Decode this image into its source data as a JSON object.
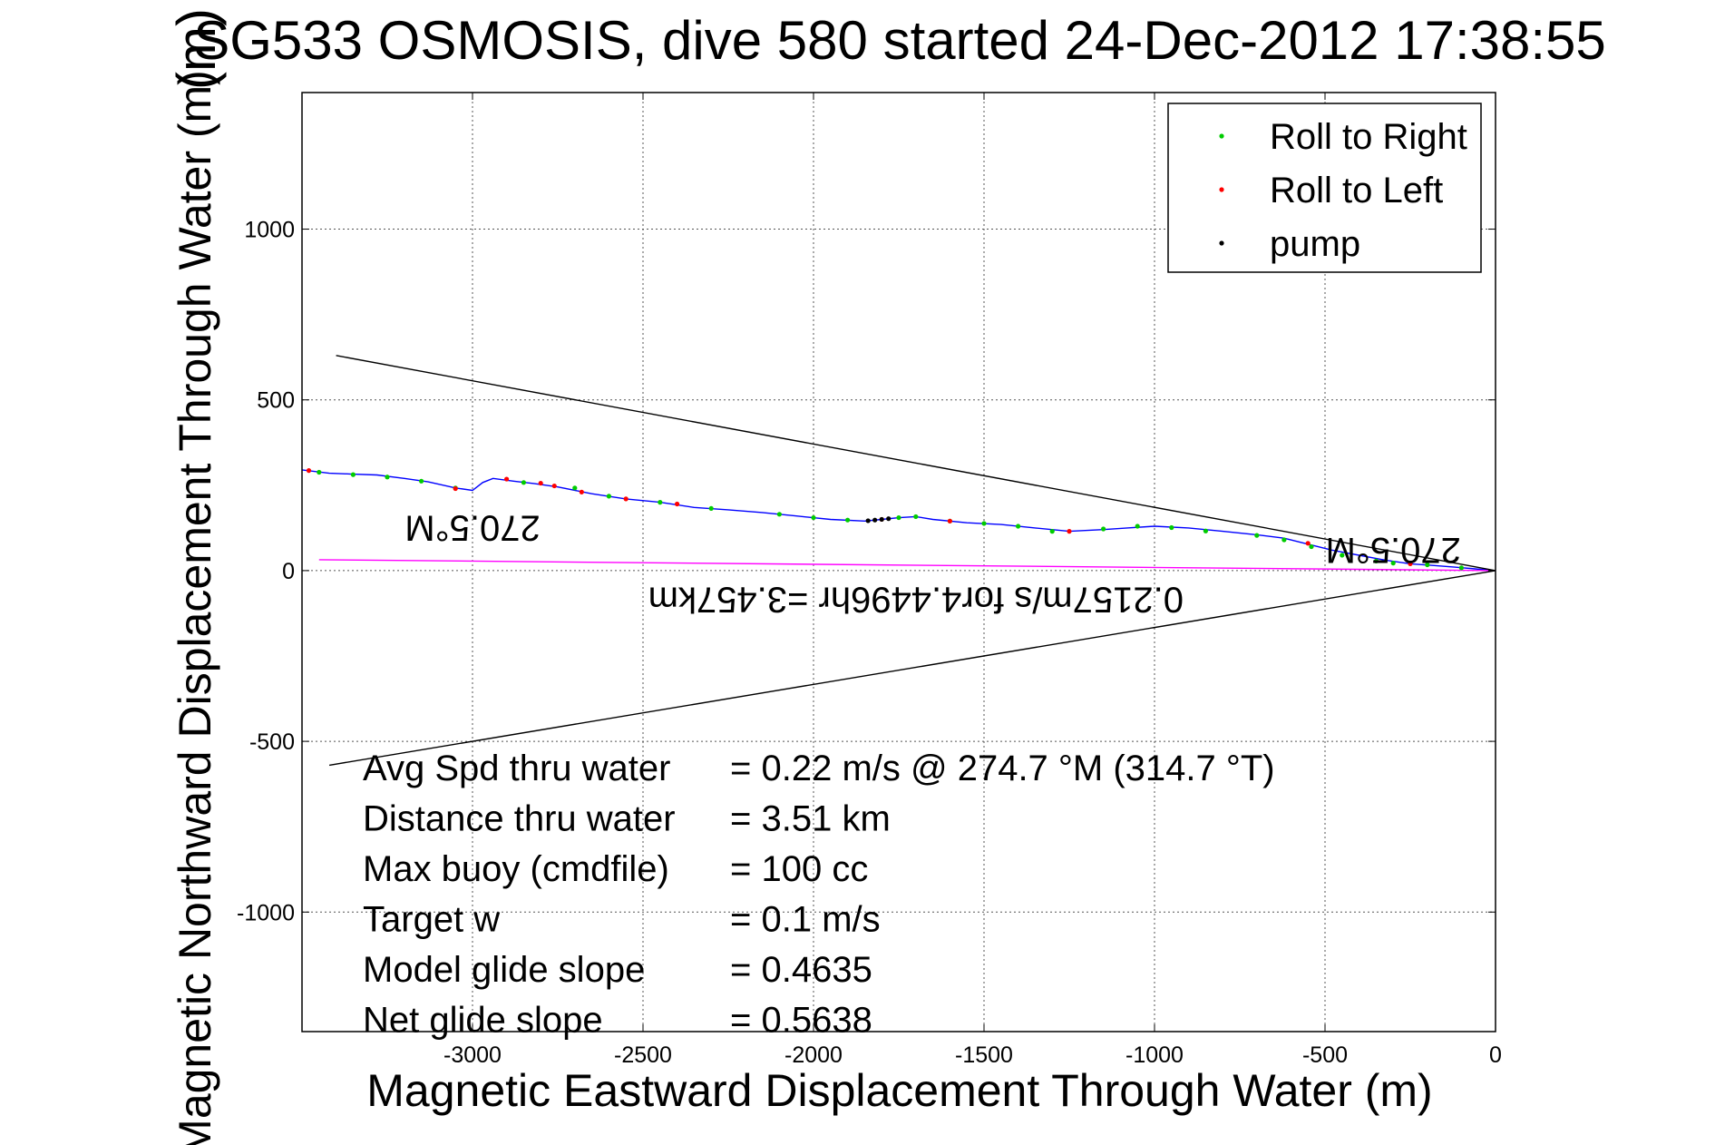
{
  "chart_data": {
    "type": "line",
    "title": "SG533 OSMOSIS, dive 580 started 24-Dec-2012 17:38:55",
    "title_overlay_fragment": "(m)",
    "xlabel": "Magnetic Eastward Displacement Through Water (m)",
    "ylabel": "Magnetic Northward Displacement Through Water (m)",
    "xlim": [
      -3500,
      0
    ],
    "ylim": [
      -1350,
      1400
    ],
    "xticks": [
      -3000,
      -2500,
      -2000,
      -1500,
      -1000,
      -500,
      0
    ],
    "yticks": [
      -1000,
      -500,
      0,
      500,
      1000
    ],
    "grid": true,
    "legend": {
      "placement": "top-right",
      "entries": [
        {
          "label": "Roll to Right",
          "color": "#00cc00"
        },
        {
          "label": "Roll to Left",
          "color": "#ff0000"
        },
        {
          "label": "pump",
          "color": "#000000"
        }
      ]
    },
    "series": [
      {
        "style": "track",
        "color": "#0000ff",
        "x": [
          0,
          -60,
          -120,
          -180,
          -250,
          -320,
          -400,
          -480,
          -560,
          -620,
          -700,
          -800,
          -900,
          -1000,
          -1080,
          -1150,
          -1250,
          -1350,
          -1450,
          -1550,
          -1650,
          -1700,
          -1750,
          -1800,
          -1850,
          -1950,
          -2050,
          -2150,
          -2250,
          -2350,
          -2450,
          -2550,
          -2650,
          -2750,
          -2820,
          -2880,
          -2940,
          -2970,
          -3000,
          -3050,
          -3130,
          -3200,
          -3280,
          -3360,
          -3420,
          -3500
        ],
        "y": [
          0,
          5,
          10,
          15,
          20,
          30,
          45,
          60,
          80,
          95,
          105,
          115,
          125,
          130,
          125,
          120,
          115,
          125,
          135,
          140,
          150,
          158,
          155,
          150,
          145,
          150,
          160,
          170,
          178,
          185,
          200,
          210,
          225,
          245,
          255,
          262,
          270,
          258,
          235,
          242,
          260,
          270,
          280,
          283,
          285,
          295
        ]
      },
      {
        "style": "depth-averaged-current",
        "color": "#ff00ff",
        "x": [
          0,
          -3450
        ],
        "y": [
          0,
          32
        ]
      },
      {
        "style": "heading-fan-upper",
        "color": "#000000",
        "x": [
          0,
          -3400
        ],
        "y": [
          0,
          630
        ]
      },
      {
        "style": "heading-fan-lower",
        "color": "#000000",
        "x": [
          0,
          -3420
        ],
        "y": [
          0,
          -570
        ]
      }
    ],
    "markers": {
      "roll_right": {
        "color": "#00cc00",
        "x": [
          -100,
          -200,
          -300,
          -350,
          -450,
          -540,
          -620,
          -700,
          -850,
          -950,
          -1050,
          -1150,
          -1300,
          -1400,
          -1500,
          -1600,
          -1700,
          -1750,
          -1900,
          -2000,
          -2100,
          -2300,
          -2450,
          -2600,
          -2700,
          -2850,
          -3050,
          -3150,
          -3250,
          -3350,
          -3450
        ],
        "y": [
          8,
          17,
          22,
          28,
          45,
          70,
          90,
          103,
          116,
          126,
          130,
          122,
          115,
          130,
          138,
          145,
          158,
          155,
          148,
          155,
          165,
          182,
          200,
          218,
          242,
          258,
          242,
          262,
          274,
          281,
          288
        ]
      },
      "roll_left": {
        "color": "#ff0000",
        "x": [
          -250,
          -550,
          -1250,
          -1600,
          -1800,
          -2400,
          -2550,
          -2680,
          -2760,
          -2800,
          -2900,
          -3050,
          -3480
        ],
        "y": [
          20,
          80,
          115,
          145,
          150,
          195,
          210,
          230,
          248,
          256,
          268,
          240,
          293
        ]
      },
      "pump": {
        "color": "#000000",
        "x": [
          -1780,
          -1800,
          -1820,
          -1840
        ],
        "y": [
          152,
          150,
          148,
          146
        ]
      }
    },
    "annotations": [
      {
        "text": "270.5°M",
        "x": -300,
        "y": 95,
        "rotation_deg": 180
      },
      {
        "text": "0.2157m/s for4.4496hr =3.457km",
        "x": -1700,
        "y": -50,
        "rotation_deg": 180
      },
      {
        "text": "270.5°M",
        "x": -3000,
        "y": 160,
        "rotation_deg": 180
      }
    ]
  },
  "stats": [
    {
      "label": "Avg Spd thru water",
      "value": "=  0.22 m/s @ 274.7 °M (314.7 °T)"
    },
    {
      "label": "Distance thru water",
      "value": "=  3.51 km"
    },
    {
      "label": "Max buoy (cmdfile)",
      "value": "= 100 cc"
    },
    {
      "label": "Target w",
      "value": "= 0.1 m/s"
    },
    {
      "label": "Model glide slope",
      "value": "= 0.4635"
    },
    {
      "label": "Net glide slope",
      "value": "= 0.5638"
    }
  ]
}
